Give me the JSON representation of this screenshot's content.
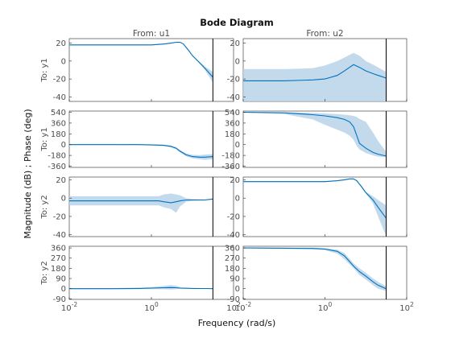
{
  "chart_data": {
    "type": "line",
    "title": "Bode Diagram",
    "xlabel": "Frequency  (rad/s)",
    "ylabel": "Magnitude (dB) ; Phase (deg)",
    "x_scale": "log",
    "xlim": [
      0.01,
      100
    ],
    "xticks": [
      {
        "v": 0.01,
        "base": "10",
        "exp": "-2"
      },
      {
        "v": 1,
        "base": "10",
        "exp": "0"
      },
      {
        "v": 100,
        "base": "10",
        "exp": "2"
      }
    ],
    "cutoff_frequency": 31.4,
    "line_color": "#0072bd",
    "band_color": "#b9d4ea",
    "columns": [
      "From: u1",
      "From: u2"
    ],
    "rows": [
      {
        "label": "To: y1",
        "ylim": [
          -45,
          25
        ],
        "yticks": [
          20,
          0,
          -20,
          -40
        ]
      },
      {
        "label": "To: y1",
        "ylim": [
          -380,
          560
        ],
        "yticks": [
          540,
          360,
          180,
          0,
          -180,
          -360
        ]
      },
      {
        "label": "To: y2",
        "ylim": [
          -42,
          23
        ],
        "yticks": [
          20,
          0,
          -20,
          -40
        ]
      },
      {
        "label": "To: y2",
        "ylim": [
          -95,
          375
        ],
        "yticks": [
          360,
          270,
          180,
          90,
          0,
          -90
        ]
      }
    ],
    "panels": [
      {
        "name": "u1-y1-magnitude",
        "x": [
          0.01,
          0.1,
          0.5,
          1,
          2,
          3,
          4,
          5,
          6,
          8,
          10,
          15,
          20,
          31.4
        ],
        "y": [
          18,
          18,
          18,
          18,
          19,
          20,
          21,
          21,
          19,
          12,
          6,
          -2,
          -8,
          -18
        ],
        "lower": [
          17.5,
          17.5,
          17.5,
          17.5,
          18.5,
          19.5,
          20.5,
          20.5,
          18.5,
          11.5,
          5.5,
          -3,
          -10,
          -24
        ],
        "upper": [
          18.5,
          18.5,
          18.5,
          18.5,
          19.5,
          20.5,
          21.5,
          21.5,
          19.5,
          12.5,
          6.5,
          -1,
          -6,
          -12
        ]
      },
      {
        "name": "u2-y1-magnitude",
        "x": [
          0.01,
          0.1,
          0.5,
          1,
          2,
          3,
          5,
          7,
          10,
          15,
          20,
          31.4
        ],
        "y": [
          -22,
          -22,
          -21,
          -20,
          -16,
          -11,
          -4,
          -7,
          -11,
          -14,
          -16,
          -19
        ],
        "lower": [
          -45,
          -45,
          -45,
          -45,
          -45,
          -45,
          -45,
          -45,
          -45,
          -45,
          -45,
          -45
        ],
        "upper": [
          -9,
          -9,
          -8,
          -5,
          0,
          4,
          9,
          6,
          0,
          -4,
          -7,
          -12
        ]
      },
      {
        "name": "u1-y1-phase",
        "x": [
          0.01,
          0.1,
          0.5,
          1,
          2,
          3,
          4,
          5,
          7,
          10,
          15,
          20,
          31.4
        ],
        "y": [
          0,
          0,
          0,
          -5,
          -12,
          -30,
          -60,
          -110,
          -170,
          -200,
          -210,
          -210,
          -200
        ],
        "lower": [
          -6,
          -6,
          -8,
          -14,
          -24,
          -45,
          -78,
          -130,
          -195,
          -230,
          -245,
          -255,
          -240
        ],
        "upper": [
          6,
          6,
          8,
          4,
          0,
          -15,
          -42,
          -90,
          -145,
          -170,
          -175,
          -165,
          -160
        ]
      },
      {
        "name": "u2-y1-phase",
        "x": [
          0.01,
          0.1,
          0.5,
          1,
          2,
          3,
          4,
          5,
          6,
          7,
          10,
          15,
          20,
          31.4
        ],
        "y": [
          540,
          530,
          500,
          480,
          450,
          420,
          380,
          300,
          150,
          20,
          -60,
          -130,
          -160,
          -190
        ],
        "lower": [
          535,
          510,
          420,
          330,
          250,
          200,
          150,
          80,
          -20,
          -80,
          -140,
          -180,
          -200,
          -210
        ],
        "upper": [
          545,
          540,
          530,
          520,
          510,
          500,
          490,
          480,
          460,
          430,
          380,
          200,
          60,
          -120
        ]
      },
      {
        "name": "u1-y2-magnitude",
        "x": [
          0.01,
          0.1,
          0.5,
          1,
          1.5,
          2,
          3,
          4,
          5,
          7,
          10,
          20,
          31.4
        ],
        "y": [
          -3,
          -3,
          -3,
          -3,
          -3,
          -4,
          -5,
          -4,
          -3,
          -2,
          -2,
          -2,
          -1
        ],
        "lower": [
          -8,
          -8,
          -8,
          -8,
          -8,
          -10,
          -12,
          -16,
          -9,
          -4,
          -3,
          -2.5,
          -1.5
        ],
        "upper": [
          2,
          2,
          2,
          2,
          2,
          4,
          5,
          4,
          3,
          0,
          -1,
          -1.5,
          -0.5
        ]
      },
      {
        "name": "u2-y2-magnitude",
        "x": [
          0.01,
          0.1,
          0.5,
          1,
          2,
          3,
          4,
          5,
          6,
          8,
          10,
          15,
          20,
          31.4
        ],
        "y": [
          18,
          18,
          18,
          18,
          19,
          20,
          21,
          21,
          19,
          12,
          6,
          -2,
          -10,
          -22
        ],
        "lower": [
          17.5,
          17.5,
          17.5,
          17.5,
          18.5,
          19.5,
          20.5,
          20.5,
          18.5,
          11,
          5,
          -6,
          -20,
          -42
        ],
        "upper": [
          18.5,
          18.5,
          18.5,
          18.5,
          19.5,
          20.5,
          21.5,
          21.5,
          19.5,
          13,
          7,
          2,
          -2,
          -8
        ]
      },
      {
        "name": "u1-y2-phase",
        "x": [
          0.01,
          0.1,
          0.5,
          1,
          2,
          3,
          4,
          5,
          7,
          10,
          20,
          31.4
        ],
        "y": [
          0,
          0,
          2,
          5,
          8,
          10,
          8,
          5,
          3,
          2,
          1,
          0
        ],
        "lower": [
          -5,
          -5,
          -4,
          -4,
          -6,
          -8,
          -5,
          -2,
          -1,
          0,
          0,
          -1
        ],
        "upper": [
          5,
          5,
          8,
          14,
          24,
          32,
          26,
          14,
          8,
          4,
          2,
          1
        ]
      },
      {
        "name": "u2-y2-phase",
        "x": [
          0.01,
          0.1,
          0.5,
          1,
          2,
          3,
          5,
          7,
          10,
          15,
          20,
          31.4
        ],
        "y": [
          360,
          358,
          356,
          350,
          330,
          290,
          200,
          150,
          110,
          60,
          30,
          0
        ],
        "lower": [
          357,
          353,
          348,
          340,
          310,
          260,
          180,
          120,
          80,
          30,
          0,
          -20
        ],
        "upper": [
          363,
          363,
          362,
          358,
          345,
          315,
          225,
          180,
          140,
          90,
          60,
          20
        ]
      }
    ]
  }
}
